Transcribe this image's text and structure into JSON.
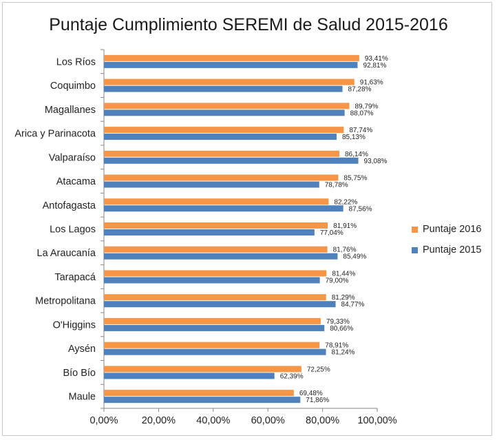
{
  "chart_data": {
    "type": "bar",
    "orientation": "horizontal",
    "title": "Puntaje Cumplimiento SEREMI de Salud 2015-2016",
    "categories": [
      "Los Ríos",
      "Coquimbo",
      "Magallanes",
      "Arica y Parinacota",
      "Valparaíso",
      "Atacama",
      "Antofagasta",
      "Los Lagos",
      "La Araucanía",
      "Tarapacá",
      "Metropolitana",
      "O'Higgins",
      "Aysén",
      "Bío Bío",
      "Maule"
    ],
    "series": [
      {
        "name": "Puntaje 2016",
        "color": "#F79646",
        "values": [
          93.41,
          91.63,
          89.79,
          87.74,
          86.14,
          85.75,
          82.22,
          81.91,
          81.76,
          81.44,
          81.29,
          79.33,
          78.91,
          72.25,
          69.48
        ],
        "labels": [
          "93,41%",
          "91,63%",
          "89,79%",
          "87,74%",
          "86,14%",
          "85,75%",
          "82,22%",
          "81,91%",
          "81,76%",
          "81,44%",
          "81,29%",
          "79,33%",
          "78,91%",
          "72,25%",
          "69,48%"
        ]
      },
      {
        "name": "Puntaje 2015",
        "color": "#4F81BD",
        "values": [
          92.81,
          87.28,
          88.07,
          85.13,
          93.08,
          78.78,
          87.56,
          77.04,
          85.49,
          79.0,
          84.77,
          80.66,
          81.24,
          62.39,
          71.86
        ],
        "labels": [
          "92,81%",
          "87,28%",
          "88,07%",
          "85,13%",
          "93,08%",
          "78,78%",
          "87,56%",
          "77,04%",
          "85,49%",
          "79,00%",
          "84,77%",
          "80,66%",
          "81,24%",
          "62,39%",
          "71,86%"
        ]
      }
    ],
    "xlim": [
      0,
      100
    ],
    "xticks": [
      "0,00%",
      "20,00%",
      "40,00%",
      "60,00%",
      "80,00%",
      "100,00%"
    ],
    "legend_position": "right",
    "grid": false
  }
}
